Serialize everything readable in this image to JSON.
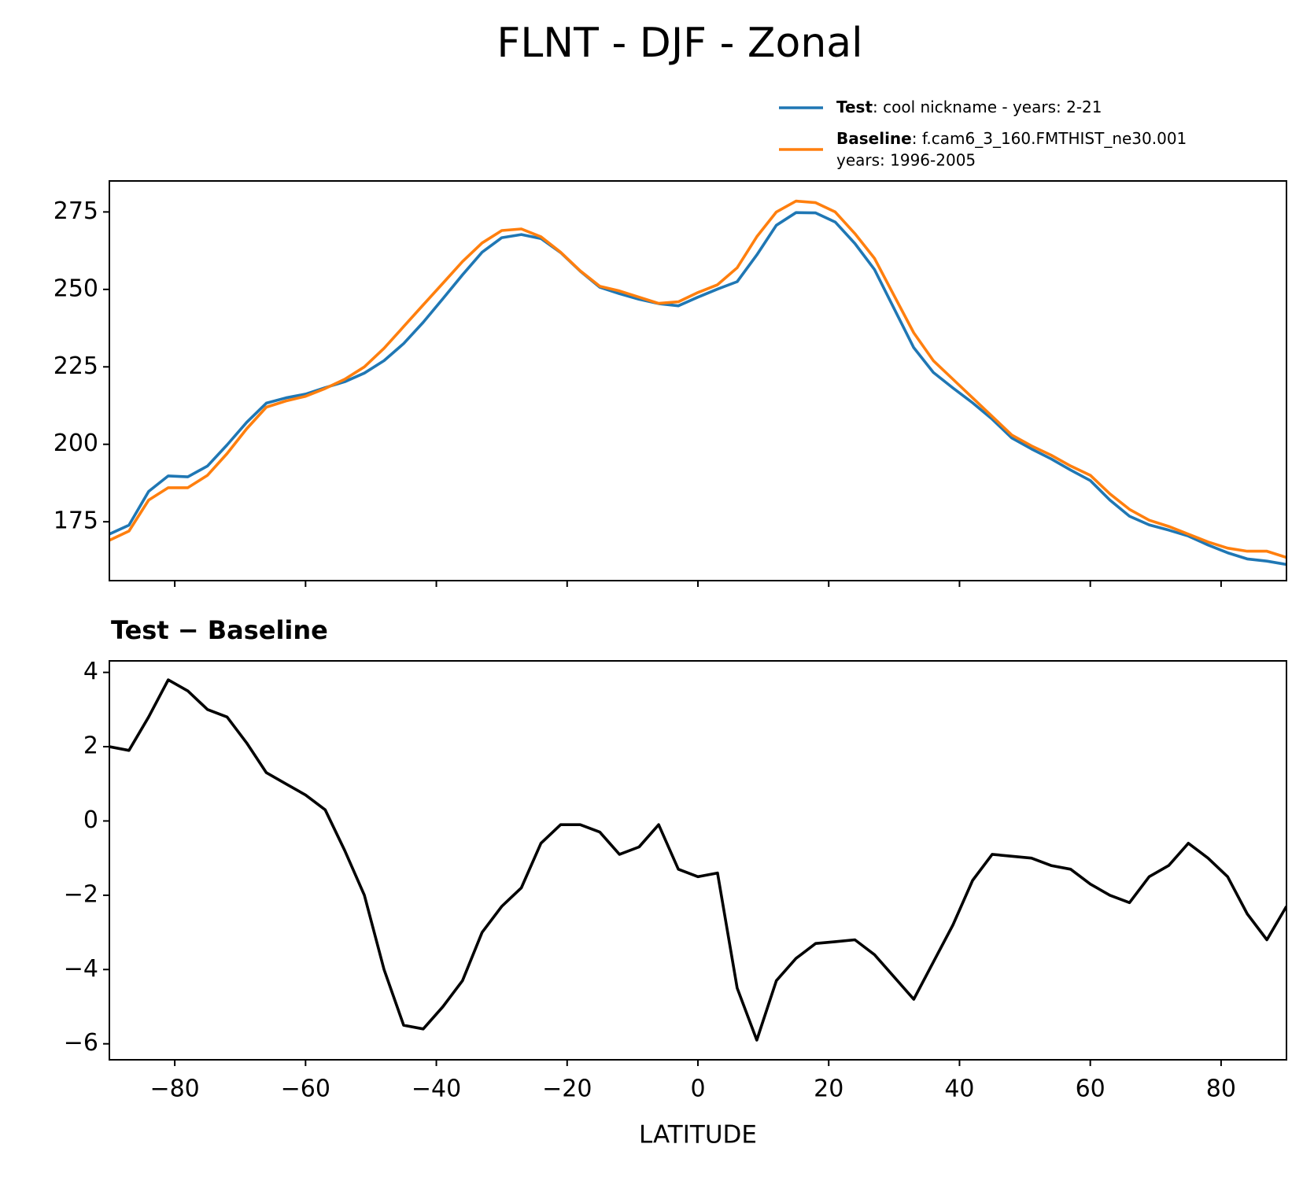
{
  "figure_title": "FLNT - DJF - Zonal",
  "chart_data": [
    {
      "type": "line",
      "x": [
        -90,
        -87,
        -84,
        -81,
        -78,
        -75,
        -72,
        -69,
        -66,
        -63,
        -60,
        -57,
        -54,
        -51,
        -48,
        -45,
        -42,
        -39,
        -36,
        -33,
        -30,
        -27,
        -24,
        -21,
        -18,
        -15,
        -12,
        -9,
        -6,
        -3,
        0,
        3,
        6,
        9,
        12,
        15,
        18,
        21,
        24,
        27,
        30,
        33,
        36,
        39,
        42,
        45,
        48,
        51,
        54,
        57,
        60,
        63,
        66,
        69,
        72,
        75,
        78,
        81,
        84,
        87,
        90
      ],
      "series": [
        {
          "name": "Test",
          "description": [
            ": cool nickname - years: 2-21"
          ],
          "color": "#1f77b4",
          "values": [
            171,
            173.9,
            184.8,
            189.8,
            189.5,
            193,
            199.8,
            207.1,
            213.3,
            215,
            216.2,
            218.3,
            220.2,
            223,
            227,
            232.5,
            239.4,
            247,
            254.7,
            262,
            266.7,
            267.7,
            266.4,
            261.9,
            255.9,
            250.7,
            248.6,
            246.8,
            245.4,
            244.7,
            247.5,
            250.1,
            252.5,
            261.1,
            270.7,
            274.8,
            274.7,
            271.75,
            264.8,
            256.4,
            243.8,
            231.2,
            223.2,
            218.2,
            213.4,
            208.1,
            202.05,
            198.5,
            195.3,
            191.7,
            188.3,
            182,
            176.8,
            174,
            172.3,
            170.4,
            167.5,
            165,
            163,
            162.3,
            161.2
          ]
        },
        {
          "name": "Baseline",
          "description": [
            ": f.cam6_3_160.FMTHIST_ne30.001",
            "years: 1996-2005"
          ],
          "color": "#ff7f0e",
          "values": [
            169,
            172,
            182,
            186,
            186,
            190,
            197,
            205,
            212,
            214,
            215.5,
            218,
            221,
            225,
            231,
            238,
            245,
            252,
            259,
            265,
            269,
            269.5,
            267,
            262,
            256,
            251,
            249.5,
            247.5,
            245.5,
            246,
            249,
            251.5,
            257,
            267,
            275,
            278.5,
            278,
            275,
            268,
            260,
            248,
            236,
            227,
            221,
            215,
            209,
            203,
            199.5,
            196.5,
            193,
            190,
            184,
            179,
            175.5,
            173.5,
            171,
            168.5,
            166.5,
            165.5,
            165.5,
            163.5
          ]
        }
      ],
      "xlim": [
        -90,
        90
      ],
      "xticks": [
        -80,
        -60,
        -40,
        -20,
        0,
        20,
        40,
        60,
        80
      ],
      "ylim": [
        156,
        285
      ],
      "yticks": [
        175,
        200,
        225,
        250,
        275
      ]
    },
    {
      "type": "line",
      "title": "Test − Baseline",
      "xlabel": "LATITUDE",
      "x": [
        -90,
        -87,
        -84,
        -81,
        -78,
        -75,
        -72,
        -69,
        -66,
        -63,
        -60,
        -57,
        -54,
        -51,
        -48,
        -45,
        -42,
        -39,
        -36,
        -33,
        -30,
        -27,
        -24,
        -21,
        -18,
        -15,
        -12,
        -9,
        -6,
        -3,
        0,
        3,
        6,
        9,
        12,
        15,
        18,
        21,
        24,
        27,
        30,
        33,
        36,
        39,
        42,
        45,
        48,
        51,
        54,
        57,
        60,
        63,
        66,
        69,
        72,
        75,
        78,
        81,
        84,
        87,
        90
      ],
      "series": [
        {
          "color": "#000000",
          "values": [
            2.0,
            1.9,
            2.8,
            3.8,
            3.5,
            3.0,
            2.8,
            2.1,
            1.3,
            1.0,
            0.7,
            0.3,
            -0.8,
            -2.0,
            -4.0,
            -5.5,
            -5.6,
            -5.0,
            -4.3,
            -3.0,
            -2.3,
            -1.8,
            -0.6,
            -0.1,
            -0.1,
            -0.3,
            -0.9,
            -0.7,
            -0.1,
            -1.3,
            -1.5,
            -1.4,
            -4.5,
            -5.9,
            -4.3,
            -3.7,
            -3.3,
            -3.25,
            -3.2,
            -3.6,
            -4.2,
            -4.8,
            -3.8,
            -2.8,
            -1.6,
            -0.9,
            -0.95,
            -1.0,
            -1.2,
            -1.3,
            -1.7,
            -2.0,
            -2.2,
            -1.5,
            -1.2,
            -0.6,
            -1.0,
            -1.5,
            -2.5,
            -3.2,
            -2.3
          ]
        }
      ],
      "xlim": [
        -90,
        90
      ],
      "xticks": [
        {
          "value": -80,
          "label": "−80"
        },
        {
          "value": -60,
          "label": "−60"
        },
        {
          "value": -40,
          "label": "−40"
        },
        {
          "value": -20,
          "label": "−20"
        },
        0,
        20,
        40,
        60,
        80
      ],
      "ylim": [
        -6.43,
        4.31
      ],
      "yticks": [
        {
          "value": -6,
          "label": "−6"
        },
        {
          "value": -4,
          "label": "−4"
        },
        {
          "value": -2,
          "label": "−2"
        },
        0,
        2,
        4
      ]
    }
  ]
}
